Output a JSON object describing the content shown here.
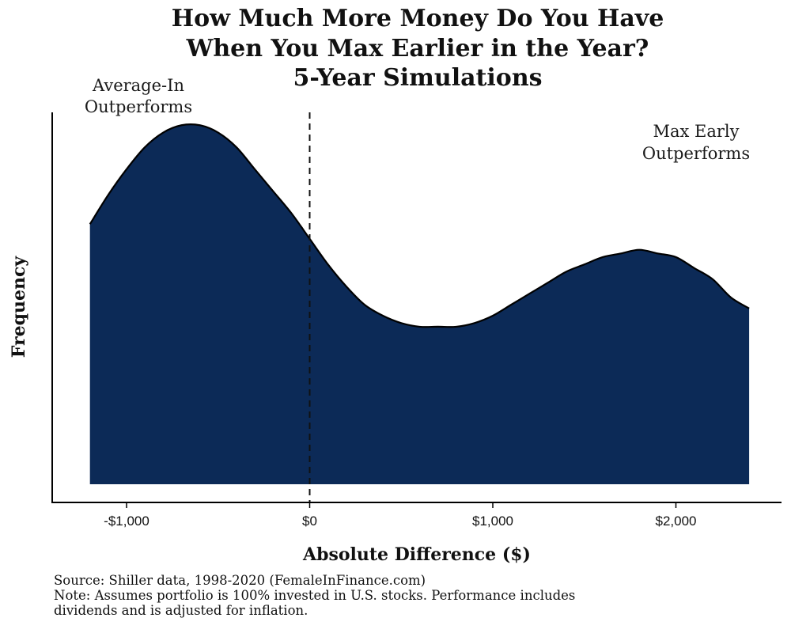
{
  "chart_data": {
    "type": "area",
    "title_lines": [
      "How Much More Money Do You Have",
      "When You Max Earlier in the Year?",
      "5-Year Simulations"
    ],
    "xlabel": "Absolute Difference ($)",
    "ylabel": "Frequency",
    "x_ticks": [
      -1000,
      0,
      1000,
      2000
    ],
    "x_tick_labels": [
      "-$1,000",
      "$0",
      "$1,000",
      "$2,000"
    ],
    "xlim": [
      -1250,
      2550
    ],
    "ylim": [
      0,
      1.0
    ],
    "reference_line": {
      "x": 0,
      "style": "dashed"
    },
    "fill_color": "#0c2a57",
    "series": [
      {
        "x": [
          -1200,
          -1100,
          -1000,
          -900,
          -800,
          -700,
          -600,
          -500,
          -400,
          -300,
          -200,
          -100,
          0,
          100,
          200,
          300,
          400,
          500,
          600,
          700,
          800,
          900,
          1000,
          1100,
          1200,
          1300,
          1400,
          1500,
          1600,
          1700,
          1800,
          1900,
          2000,
          2100,
          2200,
          2300,
          2400
        ],
        "y": [
          0.71,
          0.79,
          0.86,
          0.92,
          0.96,
          0.98,
          0.98,
          0.96,
          0.92,
          0.86,
          0.8,
          0.74,
          0.67,
          0.6,
          0.54,
          0.49,
          0.46,
          0.44,
          0.43,
          0.43,
          0.43,
          0.44,
          0.46,
          0.49,
          0.52,
          0.55,
          0.58,
          0.6,
          0.62,
          0.63,
          0.64,
          0.63,
          0.62,
          0.59,
          0.56,
          0.51,
          0.48
        ]
      }
    ],
    "annotations": {
      "left": [
        "Average-In",
        "Outperforms"
      ],
      "right": [
        "Max Early",
        "Outperforms"
      ]
    },
    "grid": false,
    "legend": "none"
  },
  "footer": {
    "source": "Source: Shiller data, 1998-2020 (FemaleInFinance.com)",
    "note_line1": "Note: Assumes portfolio is 100% invested in U.S. stocks. Performance includes",
    "note_line2": "dividends and is adjusted for inflation."
  }
}
